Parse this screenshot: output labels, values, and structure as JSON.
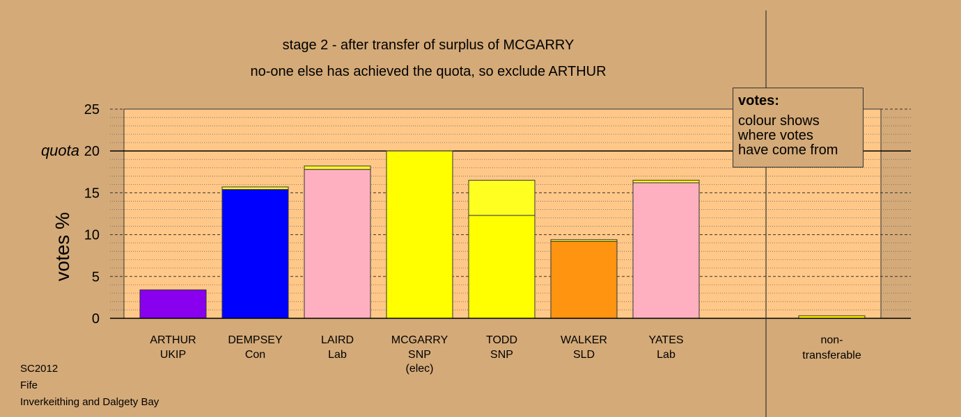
{
  "header": {
    "line1": "stage 2 - after transfer of surplus of MCGARRY",
    "line2": "no-one else has achieved the quota, so exclude ARTHUR"
  },
  "legend": {
    "title": "votes:",
    "lines": [
      "colour shows",
      "where votes",
      "have come from"
    ]
  },
  "footer": {
    "line1": "SC2012",
    "line2": "Fife",
    "line3": "Inverkeithing and Dalgety Bay"
  },
  "chart_data": {
    "type": "bar",
    "stacked": true,
    "ylabel": "votes %",
    "ylim": [
      0,
      25
    ],
    "yticks": [
      0,
      5,
      10,
      15,
      20,
      25
    ],
    "quota": 20,
    "quota_label": "quota",
    "grid": true,
    "categories": [
      {
        "name": "ARTHUR",
        "party": "UKIP",
        "note": ""
      },
      {
        "name": "DEMPSEY",
        "party": "Con",
        "note": ""
      },
      {
        "name": "LAIRD",
        "party": "Lab",
        "note": ""
      },
      {
        "name": "MCGARRY",
        "party": "SNP",
        "note": "(elec)"
      },
      {
        "name": "TODD",
        "party": "SNP",
        "note": ""
      },
      {
        "name": "WALKER",
        "party": "SLD",
        "note": ""
      },
      {
        "name": "YATES",
        "party": "Lab",
        "note": ""
      }
    ],
    "series": [
      {
        "color": "#8800ee",
        "values": [
          3.4,
          0,
          0,
          0,
          0,
          0,
          0
        ]
      },
      {
        "color": "#0000ff",
        "values": [
          0,
          15.4,
          0,
          0,
          0,
          0,
          0
        ]
      },
      {
        "color": "#ffb0c0",
        "values": [
          0,
          0,
          17.8,
          0,
          0,
          0,
          16.2
        ]
      },
      {
        "color": "#ffff00",
        "values": [
          0,
          0,
          0,
          20.0,
          12.3,
          0,
          0
        ]
      },
      {
        "color": "#ff9410",
        "values": [
          0,
          0,
          0,
          0,
          0,
          9.2,
          0
        ]
      },
      {
        "color": "#ffff20",
        "values": [
          0,
          0.3,
          0.4,
          0,
          4.2,
          0.2,
          0.3
        ]
      }
    ],
    "non_transferable": {
      "label_line1": "non-",
      "label_line2": "transferable",
      "value": 0.3,
      "color": "#ffff00"
    }
  }
}
